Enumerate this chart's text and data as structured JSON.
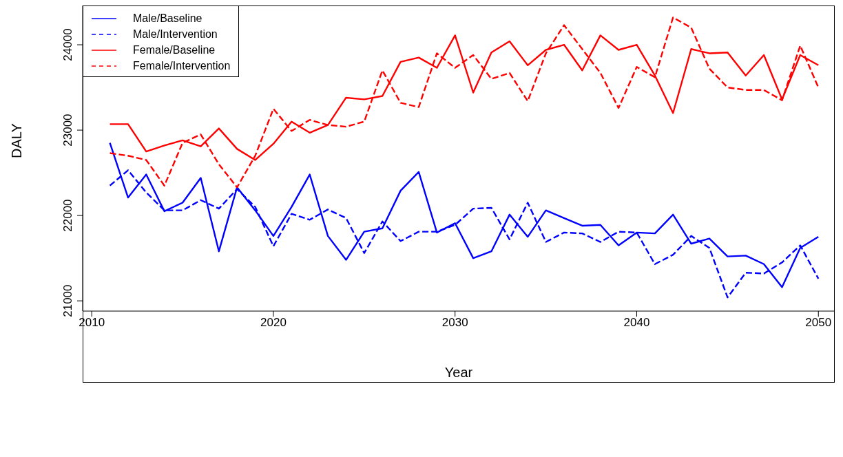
{
  "chart_data": {
    "type": "line",
    "xlabel": "Year",
    "ylabel": "DALY",
    "x": [
      2011,
      2012,
      2013,
      2014,
      2015,
      2016,
      2017,
      2018,
      2019,
      2020,
      2021,
      2022,
      2023,
      2024,
      2025,
      2026,
      2027,
      2028,
      2029,
      2030,
      2031,
      2032,
      2033,
      2034,
      2035,
      2036,
      2037,
      2038,
      2039,
      2040,
      2041,
      2042,
      2043,
      2044,
      2045,
      2046,
      2047,
      2048,
      2049,
      2050
    ],
    "series": [
      {
        "name": "Male/Baseline",
        "color": "#0000ff",
        "line_style": "solid",
        "values": [
          22850,
          22210,
          22480,
          22050,
          22150,
          22440,
          21580,
          22330,
          22060,
          21760,
          22100,
          22480,
          21760,
          21480,
          21810,
          21850,
          22290,
          22510,
          21800,
          21910,
          21500,
          21580,
          22010,
          21750,
          22060,
          21970,
          21880,
          21890,
          21650,
          21800,
          21790,
          22010,
          21670,
          21730,
          21520,
          21530,
          21430,
          21160,
          21620,
          21750
        ]
      },
      {
        "name": "Male/Intervention",
        "color": "#0000ff",
        "line_style": "dashed",
        "values": [
          22350,
          22530,
          22270,
          22060,
          22060,
          22180,
          22080,
          22310,
          22100,
          21640,
          22020,
          21950,
          22070,
          21970,
          21560,
          21930,
          21700,
          21810,
          21810,
          21890,
          22080,
          22090,
          21720,
          22150,
          21690,
          21800,
          21790,
          21690,
          21810,
          21800,
          21430,
          21540,
          21760,
          21620,
          21040,
          21330,
          21320,
          21450,
          21650,
          21260
        ]
      },
      {
        "name": "Female/Baseline",
        "color": "#ff0000",
        "line_style": "solid",
        "values": [
          23070,
          23070,
          22750,
          22820,
          22880,
          22810,
          23020,
          22780,
          22650,
          22840,
          23100,
          22970,
          23060,
          23380,
          23360,
          23400,
          23800,
          23850,
          23730,
          24110,
          23440,
          23910,
          24040,
          23760,
          23940,
          24000,
          23700,
          24110,
          23940,
          24000,
          23640,
          23200,
          23950,
          23900,
          23910,
          23640,
          23880,
          23360,
          23880,
          23760
        ]
      },
      {
        "name": "Female/Intervention",
        "color": "#ff0000",
        "line_style": "dashed",
        "values": [
          22730,
          22700,
          22650,
          22350,
          22850,
          22950,
          22600,
          22330,
          22700,
          23250,
          22990,
          23120,
          23060,
          23040,
          23100,
          23700,
          23320,
          23270,
          23900,
          23730,
          23880,
          23600,
          23670,
          23340,
          23900,
          24230,
          23950,
          23670,
          23260,
          23740,
          23620,
          24320,
          24200,
          23720,
          23500,
          23470,
          23470,
          23350,
          23990,
          23500
        ]
      }
    ],
    "xlim": [
      2009.5,
      2050.9
    ],
    "xticks": [
      2010,
      2020,
      2030,
      2040,
      2050
    ],
    "ylim": [
      20880,
      24460
    ],
    "yticks": [
      21000,
      22000,
      23000,
      24000
    ],
    "legend": "top left",
    "marker": "none"
  }
}
